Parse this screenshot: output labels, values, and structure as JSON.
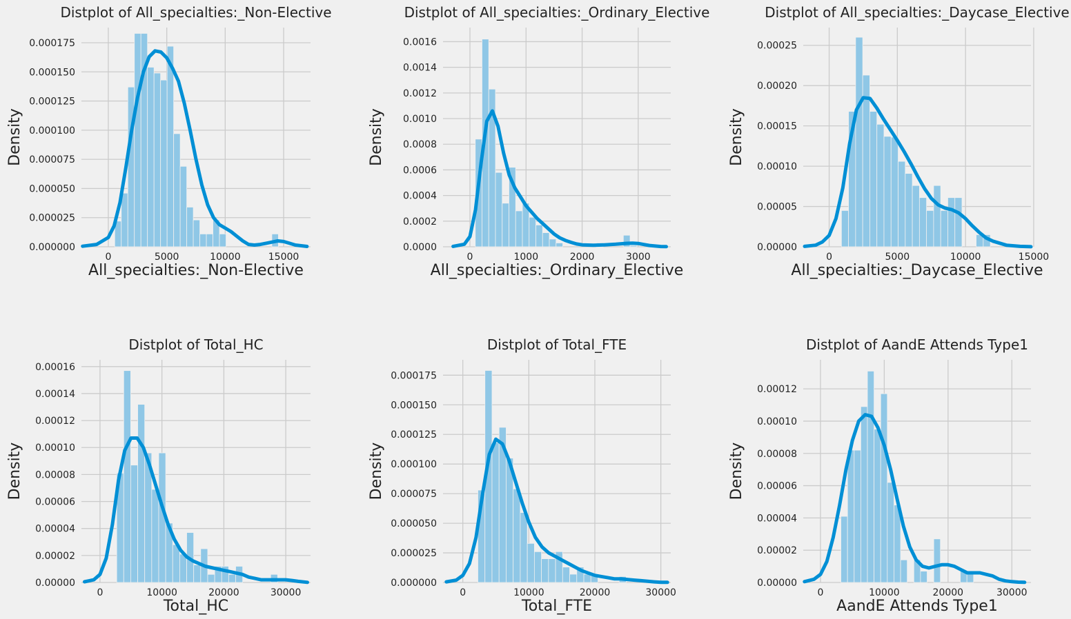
{
  "colors": {
    "background": "#f0f0f0",
    "bar": "#8fc7e6",
    "kde": "#008fd5",
    "grid": "#cbcbcb"
  },
  "chart_data": [
    {
      "type": "bar",
      "title": "Distplot of All_specialties:_Non-Elective",
      "xlabel": "All_specialties:_Non-Elective",
      "ylabel": "Density",
      "xlim": [
        -2300,
        17300
      ],
      "ylim": [
        0,
        0.000188
      ],
      "xticks": [
        0,
        5000,
        10000,
        15000
      ],
      "xtick_labels": [
        "0",
        "5000",
        "10000",
        "15000"
      ],
      "yticks": [
        0,
        2.5e-05,
        5e-05,
        7.5e-05,
        0.0001,
        0.000125,
        0.00015,
        0.000175
      ],
      "ytick_labels": [
        "0.000000",
        "0.000025",
        "0.000050",
        "0.000075",
        "0.000100",
        "0.000125",
        "0.000150",
        "0.000175"
      ],
      "grid": true,
      "hist_edges": [
        550,
        1110,
        1670,
        2230,
        2790,
        3350,
        3910,
        4470,
        5030,
        5590,
        6150,
        6710,
        7270,
        7830,
        8390,
        8950,
        9510,
        10070,
        10630,
        11190,
        11750,
        12310,
        12870,
        13430,
        13990,
        14550,
        15110
      ],
      "hist_density": [
        2.2e-05,
        4.6e-05,
        0.000137,
        0.000183,
        0.000183,
        0.000154,
        0.000149,
        0.000143,
        0.000172,
        9.7e-05,
        6.9e-05,
        3.4e-05,
        2.3e-05,
        1.1e-05,
        1.1e-05,
        2.3e-05,
        1.1e-05,
        0,
        0,
        0,
        0,
        0,
        0,
        0,
        1.1e-05,
        0
      ],
      "kde_x": [
        -2200,
        -1000,
        0,
        500,
        1000,
        1500,
        2000,
        2500,
        3000,
        3500,
        4000,
        4500,
        5000,
        5500,
        6000,
        6500,
        7000,
        7500,
        8000,
        8500,
        9000,
        9500,
        10000,
        10500,
        11000,
        11500,
        12000,
        12500,
        13000,
        13500,
        14000,
        14500,
        15000,
        15500,
        16000,
        17000
      ],
      "kde_y": [
        5e-07,
        2e-06,
        8e-06,
        1.8e-05,
        3.8e-05,
        6.8e-05,
        0.0001,
        0.000128,
        0.00015,
        0.000163,
        0.000168,
        0.000167,
        0.000162,
        0.000153,
        0.000142,
        0.000123,
        0.0001,
        7.5e-05,
        5.3e-05,
        3.6e-05,
        2.5e-05,
        1.9e-05,
        1.6e-05,
        1.3e-05,
        9e-06,
        5e-06,
        2e-06,
        1.5e-06,
        2e-06,
        3e-06,
        4e-06,
        5e-06,
        4.5e-06,
        3e-06,
        1.5e-06,
        3e-07
      ]
    },
    {
      "type": "bar",
      "title": "Distplot of All_specialties:_Ordinary_Elective",
      "xlabel": "All_specialties:_Ordinary_Elective",
      "ylabel": "Density",
      "xlim": [
        -480,
        3580
      ],
      "ylim": [
        0,
        0.00171
      ],
      "xticks": [
        0,
        1000,
        2000,
        3000
      ],
      "xtick_labels": [
        "0",
        "1000",
        "2000",
        "3000"
      ],
      "yticks": [
        0,
        0.0002,
        0.0004,
        0.0006,
        0.0008,
        0.001,
        0.0012,
        0.0014,
        0.0016
      ],
      "ytick_labels": [
        "0.0000",
        "0.0002",
        "0.0004",
        "0.0006",
        "0.0008",
        "0.0010",
        "0.0012",
        "0.0014",
        "0.0016"
      ],
      "grid": true,
      "hist_edges": [
        95,
        215,
        335,
        455,
        575,
        695,
        815,
        935,
        1055,
        1175,
        1295,
        1415,
        1535,
        1655,
        1775,
        1895,
        2015,
        2135,
        2255,
        2375,
        2495,
        2615,
        2735,
        2855,
        2975,
        3095
      ],
      "hist_density": [
        0.00084,
        0.00162,
        0.00123,
        0.00058,
        0.00034,
        0.00062,
        0.00028,
        0.00034,
        0.00023,
        0.00017,
        0.00011,
        6e-05,
        3e-05,
        0,
        0,
        0,
        0,
        0,
        3e-05,
        0,
        0,
        0,
        9e-05,
        1e-05,
        0
      ],
      "kde_x": [
        -300,
        -100,
        0,
        100,
        200,
        300,
        400,
        500,
        600,
        700,
        800,
        900,
        1000,
        1100,
        1200,
        1300,
        1400,
        1500,
        1600,
        1700,
        1800,
        1900,
        2000,
        2200,
        2400,
        2600,
        2800,
        2900,
        3000,
        3100,
        3200,
        3400,
        3500
      ],
      "kde_y": [
        3e-06,
        2e-05,
        8e-05,
        0.00029,
        0.00066,
        0.00098,
        0.00106,
        0.00094,
        0.00073,
        0.00056,
        0.00046,
        0.00039,
        0.00032,
        0.00027,
        0.00022,
        0.00018,
        0.00014,
        0.0001,
        7e-05,
        5e-05,
        3.5e-05,
        2.2e-05,
        1.5e-05,
        1.2e-05,
        1.5e-05,
        2e-05,
        2.7e-05,
        2.8e-05,
        2.6e-05,
        1.8e-05,
        1e-05,
        2e-06,
        1e-06
      ]
    },
    {
      "type": "bar",
      "title": "Distplot of All_specialties:_Daycase_Elective",
      "xlabel": "All_specialties:_Daycase_Elective",
      "ylabel": "Density",
      "xlim": [
        -1900,
        14800
      ],
      "ylim": [
        0,
        0.000272
      ],
      "xticks": [
        0,
        5000,
        10000,
        15000
      ],
      "xtick_labels": [
        "0",
        "5000",
        "10000",
        "15000"
      ],
      "yticks": [
        0,
        5e-05,
        0.0001,
        0.00015,
        0.0002,
        0.00025
      ],
      "ytick_labels": [
        "0.00000",
        "0.00005",
        "0.00010",
        "0.00015",
        "0.00020",
        "0.00025"
      ],
      "grid": true,
      "hist_edges": [
        900,
        1420,
        1940,
        2460,
        2980,
        3500,
        4020,
        4540,
        5060,
        5580,
        6100,
        6620,
        7140,
        7660,
        8180,
        8700,
        9220,
        9740,
        10260,
        10780,
        11300,
        11820
      ],
      "hist_density": [
        4.5e-05,
        0.000168,
        0.00026,
        0.000213,
        0.000168,
        0.000152,
        0.000137,
        0.000136,
        0.000106,
        9.1e-05,
        7.6e-05,
        6.1e-05,
        4.5e-05,
        7.6e-05,
        4.5e-05,
        6.1e-05,
        6.1e-05,
        0,
        0,
        1.5e-05,
        1.5e-05
      ],
      "kde_x": [
        -1800,
        -1000,
        -500,
        0,
        500,
        1000,
        1500,
        2000,
        2500,
        3000,
        3500,
        4000,
        4500,
        5000,
        5500,
        6000,
        6500,
        7000,
        7500,
        8000,
        8500,
        9000,
        9500,
        10000,
        10500,
        11000,
        11500,
        12000,
        13000,
        14000,
        14800
      ],
      "kde_y": [
        5e-07,
        2e-06,
        6e-06,
        1.4e-05,
        3.5e-05,
        7.3e-05,
        0.000128,
        0.00017,
        0.000185,
        0.000184,
        0.000172,
        0.000158,
        0.000145,
        0.000132,
        0.000118,
        0.000103,
        8.7e-05,
        7.2e-05,
        6e-05,
        5.2e-05,
        4.8e-05,
        4.6e-05,
        4.2e-05,
        3.5e-05,
        2.6e-05,
        1.8e-05,
        1.1e-05,
        7e-06,
        2e-06,
        5e-07,
        1e-07
      ]
    },
    {
      "type": "bar",
      "title": "Distplot of Total_HC",
      "xlabel": "Total_HC",
      "ylabel": "Density",
      "xlim": [
        -3000,
        34000
      ],
      "ylim": [
        0,
        0.000165
      ],
      "xticks": [
        0,
        10000,
        20000,
        30000
      ],
      "xtick_labels": [
        "0",
        "10000",
        "20000",
        "30000"
      ],
      "yticks": [
        0,
        2e-05,
        4e-05,
        6e-05,
        8e-05,
        0.0001,
        0.00012,
        0.00014,
        0.00016
      ],
      "ytick_labels": [
        "0.00000",
        "0.00002",
        "0.00004",
        "0.00006",
        "0.00008",
        "0.00010",
        "0.00012",
        "0.00014",
        "0.00016"
      ],
      "grid": true,
      "hist_edges": [
        2700,
        3830,
        4960,
        6090,
        7220,
        8350,
        9480,
        10610,
        11740,
        12870,
        14000,
        15130,
        16260,
        17390,
        18520,
        19650,
        20780,
        21910,
        23040,
        24170,
        25300,
        26430,
        27560,
        28690
      ],
      "hist_density": [
        8.1e-05,
        0.000157,
        8.7e-05,
        0.000132,
        9.6e-05,
        6.9e-05,
        9.6e-05,
        4.4e-05,
        2.8e-05,
        2.1e-05,
        3.7e-05,
        1.3e-05,
        2.5e-05,
        6e-06,
        1.2e-05,
        1.2e-05,
        6e-06,
        1.2e-05,
        0,
        0,
        0,
        0,
        6e-06
      ],
      "kde_x": [
        -2500,
        -1000,
        0,
        1000,
        2000,
        3000,
        4000,
        5000,
        6000,
        7000,
        8000,
        9000,
        10000,
        11000,
        12000,
        13000,
        14000,
        15000,
        16000,
        17000,
        18000,
        19000,
        20000,
        21000,
        22000,
        23000,
        24000,
        25000,
        26000,
        27000,
        28000,
        29000,
        30000,
        31000,
        32000,
        33500
      ],
      "kde_y": [
        5e-07,
        2e-06,
        6e-06,
        1.8e-05,
        4.3e-05,
        7.6e-05,
        9.8e-05,
        0.000107,
        0.000107,
        0.0001,
        8.7e-05,
        7.2e-05,
        5.7e-05,
        4.3e-05,
        3.2e-05,
        2.4e-05,
        1.9e-05,
        1.6e-05,
        1.4e-05,
        1.2e-05,
        1.1e-05,
        1e-05,
        9e-06,
        8e-06,
        7e-06,
        6e-06,
        4e-06,
        3e-06,
        2e-06,
        2e-06,
        2e-06,
        2e-06,
        2e-06,
        1.5e-06,
        8e-07,
        1e-07
      ]
    },
    {
      "type": "bar",
      "title": "Distplot of Total_FTE",
      "xlabel": "Total_FTE",
      "ylabel": "Density",
      "xlim": [
        -3000,
        31500
      ],
      "ylim": [
        0,
        0.000188
      ],
      "xticks": [
        0,
        10000,
        20000,
        30000
      ],
      "xtick_labels": [
        "0",
        "10000",
        "20000",
        "30000"
      ],
      "yticks": [
        0,
        2.5e-05,
        5e-05,
        7.5e-05,
        0.0001,
        0.000125,
        0.00015,
        0.000175
      ],
      "ytick_labels": [
        "0.000000",
        "0.000025",
        "0.000050",
        "0.000075",
        "0.000100",
        "0.000125",
        "0.000150",
        "0.000175"
      ],
      "grid": true,
      "hist_edges": [
        2280,
        3350,
        4420,
        5490,
        6560,
        7630,
        8700,
        9770,
        10840,
        11910,
        12980,
        14050,
        15120,
        16190,
        17260,
        18330,
        19400,
        20470,
        21540,
        22610,
        23680,
        24750,
        25820
      ],
      "hist_density": [
        7.8e-05,
        0.000179,
        0.000118,
        0.000131,
        0.000105,
        7.9e-05,
        5.9e-05,
        3.3e-05,
        2.6e-05,
        2e-05,
        2e-05,
        2.6e-05,
        1.3e-05,
        7e-06,
        1.3e-05,
        7e-06,
        7e-06,
        0,
        0,
        0,
        5e-06,
        0
      ],
      "kde_x": [
        -2500,
        -1000,
        0,
        1000,
        2000,
        3000,
        4000,
        5000,
        6000,
        7000,
        8000,
        9000,
        10000,
        11000,
        12000,
        13000,
        14000,
        15000,
        16000,
        17000,
        18000,
        19000,
        20000,
        21000,
        22000,
        23000,
        24000,
        25000,
        26000,
        27000,
        28000,
        29000,
        30000,
        31000
      ],
      "kde_y": [
        5e-07,
        2e-06,
        6e-06,
        1.6e-05,
        3.8e-05,
        7.5e-05,
        0.000108,
        0.000121,
        0.000117,
        0.000103,
        8.5e-05,
        6.7e-05,
        5.1e-05,
        3.8e-05,
        3e-05,
        2.5e-05,
        2.2e-05,
        1.9e-05,
        1.6e-05,
        1.3e-05,
        1e-05,
        8e-06,
        6e-06,
        5e-06,
        4e-06,
        3e-06,
        3e-06,
        2.5e-06,
        2e-06,
        1.5e-06,
        1e-06,
        5e-07,
        2e-07,
        1e-07
      ]
    },
    {
      "type": "bar",
      "title": "Distplot of AandE Attends Type1",
      "xlabel": "AandE Attends Type1",
      "ylabel": "Density",
      "xlim": [
        -2700,
        33000
      ],
      "ylim": [
        0,
        0.000138
      ],
      "xticks": [
        0,
        10000,
        20000,
        30000
      ],
      "xtick_labels": [
        "0",
        "10000",
        "20000",
        "30000"
      ],
      "yticks": [
        0,
        2e-05,
        4e-05,
        6e-05,
        8e-05,
        0.0001,
        0.00012
      ],
      "ytick_labels": [
        "0.00000",
        "0.00002",
        "0.00004",
        "0.00006",
        "0.00008",
        "0.00010",
        "0.00012"
      ],
      "grid": true,
      "hist_edges": [
        3200,
        4240,
        5280,
        6320,
        7360,
        8400,
        9440,
        10480,
        11520,
        12560,
        13600,
        14640,
        15680,
        16720,
        17760,
        18800,
        19840,
        20880,
        21920,
        22960,
        24000,
        25040,
        26080,
        27120
      ],
      "hist_density": [
        4.1e-05,
        8.2e-05,
        8.2e-05,
        0.000109,
        0.000131,
        9.5e-05,
        0.000117,
        6.2e-05,
        4.8e-05,
        1.4e-05,
        0,
        1.4e-05,
        7e-06,
        0,
        2.7e-05,
        0,
        0,
        0,
        7e-06,
        7e-06,
        0,
        0
      ],
      "kde_x": [
        -2500,
        -1000,
        0,
        1000,
        2000,
        3000,
        4000,
        5000,
        6000,
        7000,
        8000,
        9000,
        10000,
        11000,
        12000,
        13000,
        14000,
        15000,
        16000,
        17000,
        18000,
        19000,
        20000,
        21000,
        22000,
        23000,
        24000,
        25000,
        26000,
        27000,
        28000,
        29000,
        30000,
        31000,
        32000
      ],
      "kde_y": [
        5e-07,
        2e-06,
        5e-06,
        1.3e-05,
        2.8e-05,
        4.8e-05,
        7e-05,
        8.8e-05,
        0.0001,
        0.000104,
        0.000103,
        9.6e-05,
        8.5e-05,
        7e-05,
        5.2e-05,
        3.5e-05,
        2.2e-05,
        1.4e-05,
        1e-05,
        9e-06,
        1e-05,
        1.1e-05,
        1.1e-05,
        1e-05,
        8e-06,
        6e-06,
        6e-06,
        6e-06,
        5e-06,
        4e-06,
        2e-06,
        1e-06,
        5e-07,
        2e-07,
        1e-07
      ]
    }
  ]
}
